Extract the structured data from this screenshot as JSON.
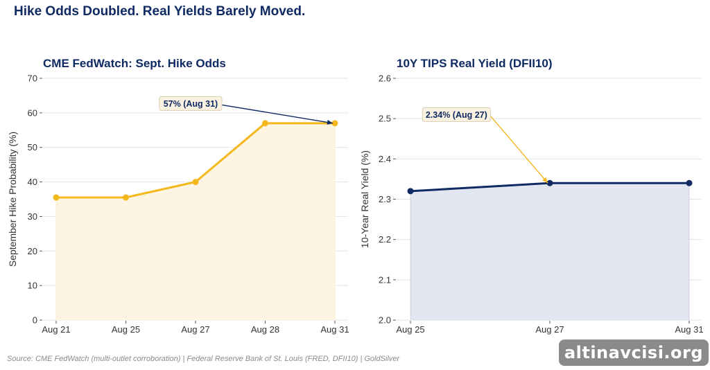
{
  "title": "Hike Odds Doubled. Real Yields Barely Moved.",
  "source": "Source: CME FedWatch (multi-outlet corroboration) | Federal Reserve Bank of St. Louis (FRED, DFII10) | GoldSilver",
  "watermark": "altinavcisi.org",
  "colors": {
    "title": "#0f2a63",
    "gold": "#f5b71e",
    "navy": "#0f2a63",
    "gold_fill": "#fdf5e1",
    "navy_fill": "#e2e6f0",
    "grid": "#e3e3e3"
  },
  "chart_data": [
    {
      "type": "area",
      "title": "CME FedWatch: Sept. Hike Odds",
      "xlabel": "",
      "ylabel": "September Hike Probability (%)",
      "categories": [
        "Aug 21",
        "Aug 25",
        "Aug 27",
        "Aug 28",
        "Aug 31"
      ],
      "values": [
        35.5,
        35.5,
        40,
        57,
        57
      ],
      "ylim": [
        0,
        70
      ],
      "yticks": [
        0,
        10,
        20,
        30,
        40,
        50,
        60,
        70
      ],
      "ytick_labels": [
        "0",
        "10",
        "20",
        "30",
        "40",
        "50",
        "60",
        "70"
      ],
      "grid": true,
      "annotation": {
        "text": "57% (Aug 31)",
        "point_index": 4,
        "anchor_x": 1.93,
        "anchor_y": 62.7
      }
    },
    {
      "type": "area",
      "title": "10Y TIPS Real Yield (DFII10)",
      "xlabel": "",
      "ylabel": "10-Year Real Yield (%)",
      "categories": [
        "Aug 25",
        "Aug 27",
        "Aug 31"
      ],
      "values": [
        2.32,
        2.34,
        2.34
      ],
      "ylim": [
        2.0,
        2.6
      ],
      "yticks": [
        2.0,
        2.1,
        2.2,
        2.3,
        2.4,
        2.5,
        2.6
      ],
      "ytick_labels": [
        "2.0",
        "2.1",
        "2.2",
        "2.3",
        "2.4",
        "2.5",
        "2.6"
      ],
      "grid": true,
      "annotation": {
        "text": "2.34% (Aug 27)",
        "point_index": 1,
        "anchor_x": 0.33,
        "anchor_y": 2.51
      }
    }
  ]
}
